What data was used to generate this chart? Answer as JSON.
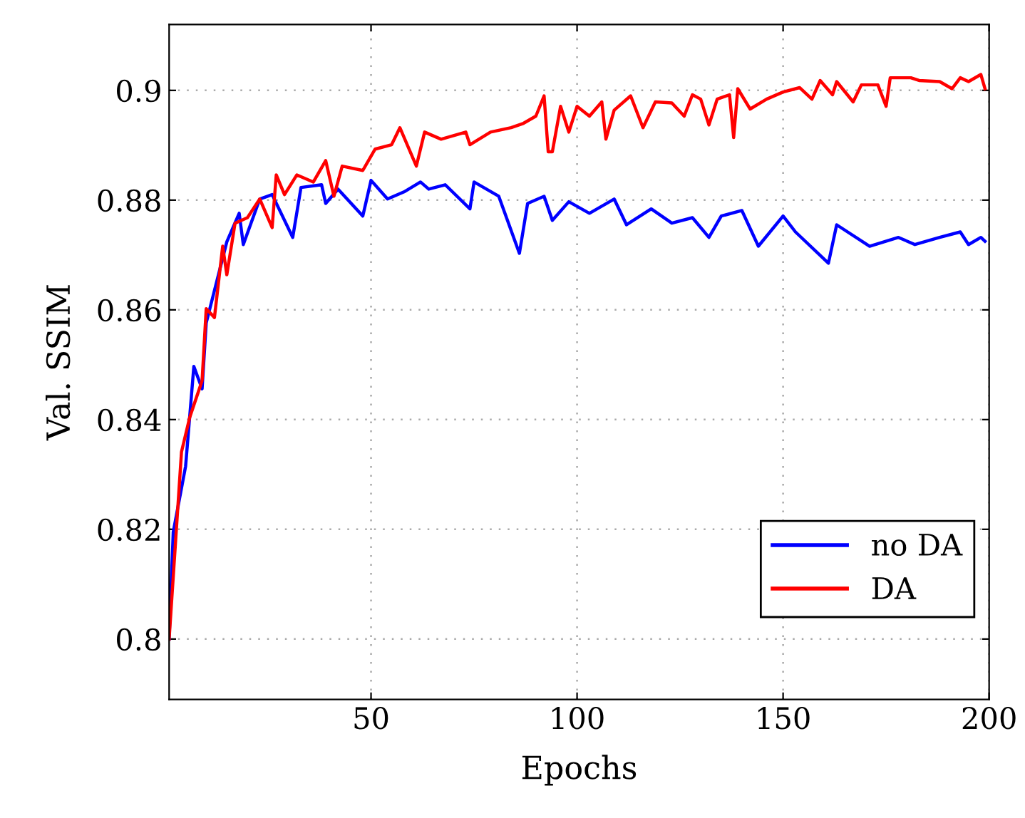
{
  "chart_data": {
    "type": "line",
    "xlabel": "Epochs",
    "ylabel": "Val. SSIM",
    "xlim": [
      1,
      200
    ],
    "ylim": [
      0.789,
      0.912
    ],
    "xticks": [
      50,
      100,
      150,
      200
    ],
    "yticks": [
      0.8,
      0.82,
      0.84,
      0.86,
      0.88,
      0.9
    ],
    "grid": true,
    "legend": "bottom right",
    "marker": "none",
    "line_style": "solid",
    "series": [
      {
        "name": "no DA",
        "color": "#0000ff",
        "x": [
          1,
          2,
          5,
          7,
          9,
          10,
          15,
          18,
          19,
          23,
          26,
          31,
          33,
          38,
          39,
          42,
          48,
          50,
          54,
          58,
          62,
          64,
          68,
          74,
          75,
          81,
          86,
          88,
          92,
          94,
          98,
          103,
          109,
          112,
          118,
          123,
          128,
          132,
          135,
          140,
          144,
          150,
          153,
          161,
          163,
          171,
          178,
          182,
          188,
          193,
          195,
          198,
          199
        ],
        "values": [
          0.8,
          0.8195,
          0.8315,
          0.8497,
          0.8456,
          0.8576,
          0.8724,
          0.8776,
          0.8719,
          0.8802,
          0.881,
          0.8732,
          0.8823,
          0.8828,
          0.8794,
          0.882,
          0.8771,
          0.8836,
          0.8802,
          0.8815,
          0.8833,
          0.882,
          0.8828,
          0.8784,
          0.8833,
          0.8807,
          0.8703,
          0.8794,
          0.8807,
          0.8763,
          0.8797,
          0.8776,
          0.8802,
          0.8755,
          0.8784,
          0.8758,
          0.8768,
          0.8732,
          0.8771,
          0.8781,
          0.8716,
          0.8771,
          0.8742,
          0.8685,
          0.8755,
          0.8716,
          0.8732,
          0.8719,
          0.8732,
          0.8742,
          0.8719,
          0.8732,
          0.8725
        ]
      },
      {
        "name": "DA",
        "color": "#ff0000",
        "x": [
          1,
          4,
          6,
          9,
          10,
          12,
          14,
          15,
          17,
          20,
          23,
          26,
          27,
          29,
          32,
          36,
          39,
          41,
          43,
          48,
          51,
          55,
          57,
          61,
          63,
          67,
          73,
          74,
          79,
          84,
          87,
          90,
          92,
          93,
          94,
          96,
          98,
          100,
          103,
          106,
          107,
          109,
          113,
          116,
          119,
          123,
          126,
          128,
          130,
          132,
          134,
          137,
          138,
          139,
          142,
          146,
          150,
          154,
          157,
          159,
          162,
          163,
          167,
          169,
          173,
          175,
          176,
          181,
          183,
          188,
          191,
          193,
          195,
          198,
          199
        ],
        "values": [
          0.8,
          0.8341,
          0.8404,
          0.8471,
          0.8602,
          0.8586,
          0.8716,
          0.8664,
          0.8758,
          0.8768,
          0.8802,
          0.875,
          0.8846,
          0.881,
          0.8846,
          0.8833,
          0.8872,
          0.8807,
          0.8862,
          0.8854,
          0.8893,
          0.8901,
          0.8932,
          0.8862,
          0.8924,
          0.8911,
          0.8924,
          0.8901,
          0.8924,
          0.8932,
          0.894,
          0.8953,
          0.899,
          0.8888,
          0.8888,
          0.8971,
          0.8924,
          0.8971,
          0.8953,
          0.8979,
          0.8911,
          0.8964,
          0.899,
          0.8932,
          0.8979,
          0.8977,
          0.8953,
          0.8992,
          0.8984,
          0.8937,
          0.8984,
          0.8992,
          0.8914,
          0.9003,
          0.8966,
          0.8984,
          0.8997,
          0.9005,
          0.8984,
          0.9018,
          0.8992,
          0.9016,
          0.8979,
          0.901,
          0.901,
          0.8971,
          0.9023,
          0.9023,
          0.9018,
          0.9016,
          0.9003,
          0.9023,
          0.9016,
          0.9029,
          0.9003
        ]
      }
    ]
  }
}
